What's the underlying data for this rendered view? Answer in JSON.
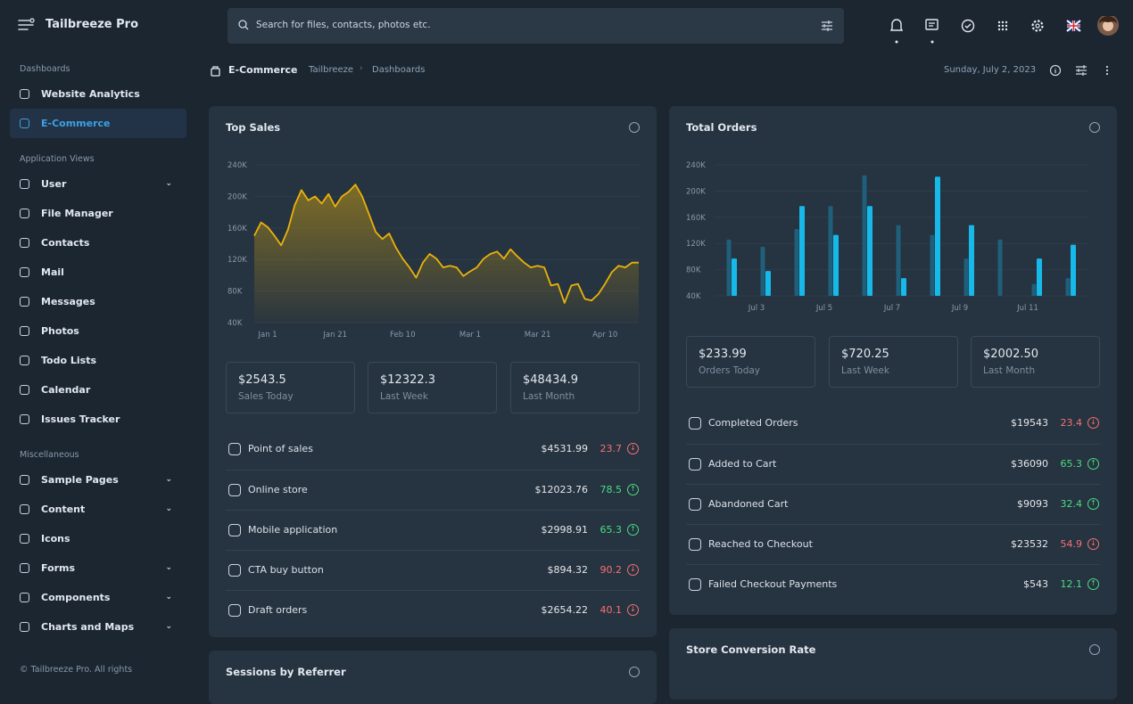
{
  "header": {
    "brand": "Tailbreeze Pro",
    "search_placeholder": "Search for files, contacts, photos etc."
  },
  "sidebar": {
    "sections": [
      {
        "title": "Dashboards",
        "items": [
          {
            "label": "Website Analytics"
          },
          {
            "label": "E-Commerce",
            "active": true
          }
        ]
      },
      {
        "title": "Application Views",
        "items": [
          {
            "label": "User",
            "expandable": true
          },
          {
            "label": "File Manager"
          },
          {
            "label": "Contacts"
          },
          {
            "label": "Mail"
          },
          {
            "label": "Messages"
          },
          {
            "label": "Photos"
          },
          {
            "label": "Todo Lists"
          },
          {
            "label": "Calendar"
          },
          {
            "label": "Issues Tracker"
          }
        ]
      },
      {
        "title": "Miscellaneous",
        "items": [
          {
            "label": "Sample Pages",
            "expandable": true
          },
          {
            "label": "Content",
            "expandable": true
          },
          {
            "label": "Icons"
          },
          {
            "label": "Forms",
            "expandable": true
          },
          {
            "label": "Components",
            "expandable": true
          },
          {
            "label": "Charts and Maps",
            "expandable": true
          }
        ]
      }
    ],
    "footer": "©  Tailbreeze Pro. All rights"
  },
  "breadcrumb": {
    "page": "E-Commerce",
    "trail": [
      "Tailbreeze",
      "Dashboards"
    ],
    "date": "Sunday, July 2, 2023"
  },
  "top_sales": {
    "title": "Top Sales",
    "chart": {
      "type": "area",
      "color": "#eab308",
      "grid": true,
      "categories": [
        null,
        null,
        "Jan 1",
        null,
        null,
        null,
        null,
        null,
        null,
        null,
        null,
        null,
        "Jan 21",
        null,
        null,
        null,
        null,
        null,
        null,
        null,
        null,
        null,
        "Feb 10",
        null,
        null,
        null,
        null,
        null,
        null,
        null,
        null,
        null,
        "Mar 1",
        null,
        null,
        null,
        null,
        null,
        null,
        null,
        null,
        null,
        "Mar 21",
        null,
        null,
        null,
        null,
        null,
        null,
        null,
        null,
        null,
        "Apr 10",
        null,
        null,
        null,
        null,
        null
      ],
      "values": [
        150000,
        167000,
        161000,
        150000,
        138000,
        158000,
        189000,
        208000,
        195000,
        200000,
        191000,
        203000,
        187000,
        200000,
        206000,
        215000,
        200000,
        178000,
        155000,
        146000,
        153000,
        135000,
        121000,
        110000,
        97000,
        116000,
        127000,
        121000,
        110000,
        112000,
        110000,
        99000,
        105000,
        110000,
        121000,
        127000,
        130000,
        121000,
        133000,
        124000,
        116000,
        110000,
        112000,
        110000,
        87000,
        89000,
        65000,
        87000,
        89000,
        70000,
        68000,
        76000,
        89000,
        104000,
        112000,
        110000,
        116000,
        116000
      ],
      "ylim": [
        40000,
        240000
      ],
      "yticks": [
        {
          "value": 40000,
          "label": "40K"
        },
        {
          "value": 80000,
          "label": "80K"
        },
        {
          "value": 120000,
          "label": "120K"
        },
        {
          "value": 160000,
          "label": "160K"
        },
        {
          "value": 200000,
          "label": "200K"
        },
        {
          "value": 240000,
          "label": "240K"
        }
      ]
    },
    "stats": [
      {
        "value": "$2543.5",
        "label": "Sales Today"
      },
      {
        "value": "$12322.3",
        "label": "Last Week"
      },
      {
        "value": "$48434.9",
        "label": "Last Month"
      }
    ],
    "rows": [
      {
        "label": "Point of sales",
        "amount": "$4531.99",
        "change": 23.7,
        "trend": "down"
      },
      {
        "label": "Online store",
        "amount": "$12023.76",
        "change": 78.5,
        "trend": "up"
      },
      {
        "label": "Mobile application",
        "amount": "$2998.91",
        "change": 65.3,
        "trend": "up"
      },
      {
        "label": "CTA buy button",
        "amount": "$894.32",
        "change": 90.2,
        "trend": "down"
      },
      {
        "label": "Draft orders",
        "amount": "$2654.22",
        "change": 40.1,
        "trend": "down"
      }
    ]
  },
  "total_orders": {
    "title": "Total Orders",
    "chart": {
      "type": "bar",
      "grid": true,
      "categories": [
        null,
        "Jul 3",
        null,
        "Jul 5",
        null,
        "Jul 7",
        null,
        "Jul 9",
        null,
        "Jul 11",
        null
      ],
      "series": [
        {
          "color": "#1f5f7a",
          "values": [
            126000,
            115000,
            142000,
            177000,
            224000,
            148000,
            133000,
            97000,
            126000,
            58000,
            67000
          ]
        },
        {
          "color": "#16b9e8",
          "values": [
            97000,
            78000,
            177000,
            133000,
            177000,
            67000,
            222000,
            148000,
            null,
            97000,
            118000
          ]
        }
      ],
      "ylim": [
        40000,
        240000
      ],
      "yticks": [
        {
          "value": 40000,
          "label": "40K"
        },
        {
          "value": 80000,
          "label": "80K"
        },
        {
          "value": 120000,
          "label": "120K"
        },
        {
          "value": 160000,
          "label": "160K"
        },
        {
          "value": 200000,
          "label": "200K"
        },
        {
          "value": 240000,
          "label": "240K"
        }
      ]
    },
    "stats": [
      {
        "value": "$233.99",
        "label": "Orders Today"
      },
      {
        "value": "$720.25",
        "label": "Last Week"
      },
      {
        "value": "$2002.50",
        "label": "Last Month"
      }
    ],
    "rows": [
      {
        "label": "Completed Orders",
        "amount": "$19543",
        "change": 23.4,
        "trend": "down"
      },
      {
        "label": "Added to Cart",
        "amount": "$36090",
        "change": 65.3,
        "trend": "up"
      },
      {
        "label": "Abandoned Cart",
        "amount": "$9093",
        "change": 32.4,
        "trend": "up"
      },
      {
        "label": "Reached to Checkout",
        "amount": "$23532",
        "change": 54.9,
        "trend": "down"
      },
      {
        "label": "Failed Checkout Payments",
        "amount": "$543",
        "change": 12.1,
        "trend": "up"
      }
    ]
  },
  "sessions_by_referrer": {
    "title": "Sessions by Referrer"
  },
  "store_conversion_rate": {
    "title": "Store Conversion Rate"
  }
}
